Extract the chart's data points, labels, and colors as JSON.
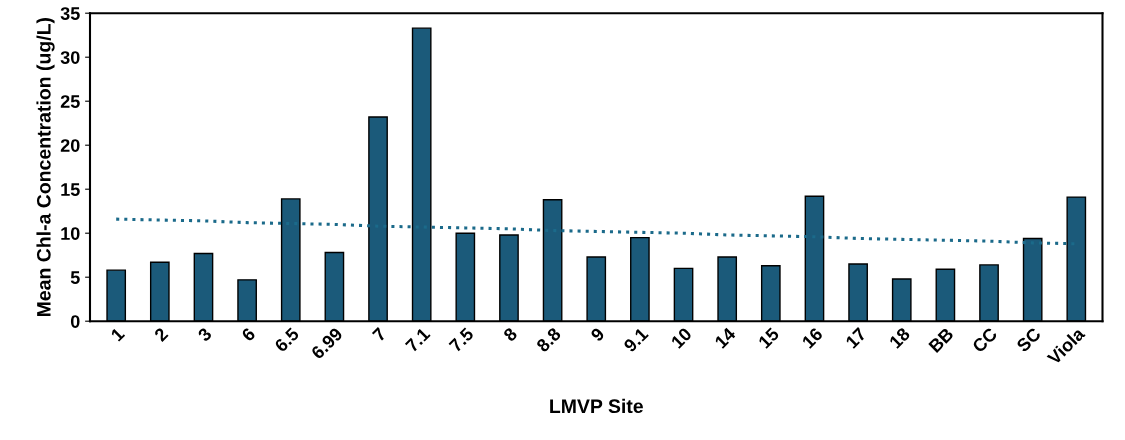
{
  "chart_data": {
    "type": "bar",
    "xlabel": "LMVP Site",
    "ylabel": "Mean Chl-a Concentration (ug/L)",
    "categories": [
      "1",
      "2",
      "3",
      "6",
      "6.5",
      "6.99",
      "7",
      "7.1",
      "7.5",
      "8",
      "8.8",
      "9",
      "9.1",
      "10",
      "14",
      "15",
      "16",
      "17",
      "18",
      "BB",
      "CC",
      "SC",
      "Viola"
    ],
    "series": [
      {
        "color": "#1b5a7a",
        "values": [
          5.8,
          6.7,
          7.7,
          4.7,
          13.9,
          7.8,
          23.2,
          33.3,
          10.0,
          9.8,
          13.8,
          7.3,
          9.5,
          6.0,
          7.3,
          6.3,
          14.2,
          6.5,
          4.8,
          5.9,
          6.4,
          9.4,
          14.1
        ]
      },
      {
        "type": "line",
        "color": "#1b6a8a",
        "line_style": "dotted",
        "values": [
          11.6,
          11.5,
          11.4,
          11.2,
          11.1,
          11.0,
          10.8,
          10.7,
          10.6,
          10.5,
          10.3,
          10.2,
          10.1,
          10.0,
          9.8,
          9.7,
          9.6,
          9.4,
          9.3,
          9.2,
          9.1,
          8.9,
          8.8
        ]
      }
    ],
    "ylim": [
      0,
      35
    ],
    "yticks": [
      0,
      5,
      10,
      15,
      20,
      25,
      30,
      35
    ],
    "grid": false,
    "legend": false
  }
}
